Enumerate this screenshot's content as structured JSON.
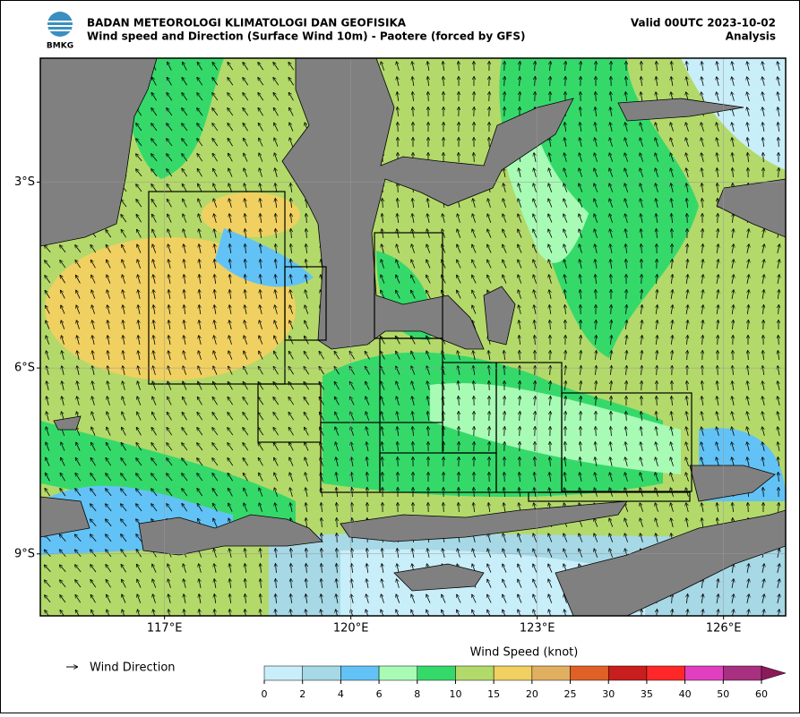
{
  "header": {
    "logo": "BMKG",
    "agency": "BADAN METEOROLOGI KLIMATOLOGI DAN GEOFISIKA",
    "product": "Wind speed and Direction (Surface Wind 10m) - Paotere (forced by GFS)",
    "valid": "Valid 00UTC 2023-10-02",
    "status": "Analysis"
  },
  "map": {
    "xlim": [
      115,
      127
    ],
    "ylim": [
      -10,
      -1
    ],
    "xticks": [
      {
        "value": 117,
        "label": "117°E"
      },
      {
        "value": 120,
        "label": "120°E"
      },
      {
        "value": 123,
        "label": "123°E"
      },
      {
        "value": 126,
        "label": "126°E"
      }
    ],
    "yticks": [
      {
        "value": -3,
        "label": "3°S"
      },
      {
        "value": -6,
        "label": "6°S"
      },
      {
        "value": -9,
        "label": "9°S"
      }
    ]
  },
  "colorbar": {
    "title": "Wind Speed (knot)",
    "ticks": [
      0,
      2,
      4,
      6,
      8,
      10,
      15,
      20,
      25,
      30,
      35,
      40,
      50,
      60
    ],
    "colors": [
      "#c8eef9",
      "#a6d8e6",
      "#62c2f5",
      "#a8fbb4",
      "#34d96a",
      "#b3d96a",
      "#f0d060",
      "#e0b060",
      "#e06028",
      "#c81e1e",
      "#ff2828",
      "#e040c0",
      "#a83080"
    ],
    "extend_color": "#8b1a5a"
  },
  "legend": {
    "label": "Wind Direction"
  }
}
